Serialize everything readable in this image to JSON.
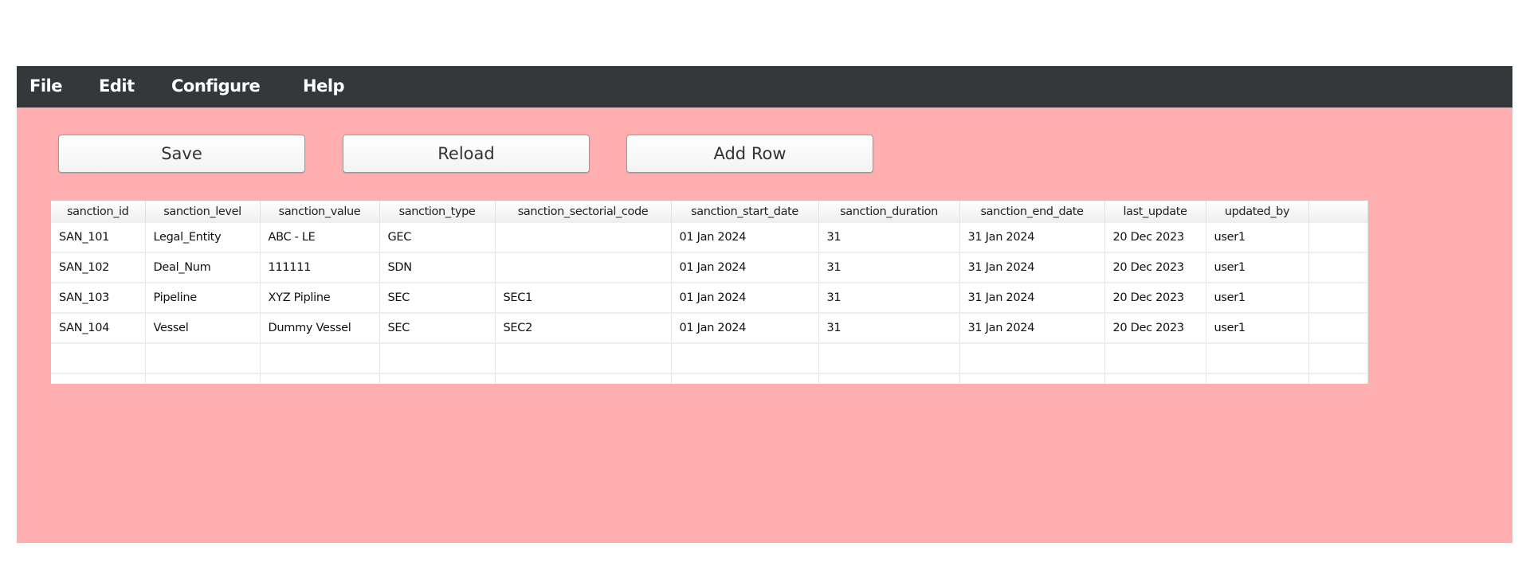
{
  "menu": [
    "File",
    "Edit",
    "Configure",
    "Help"
  ],
  "toolbar": {
    "save_label": "Save",
    "reload_label": "Reload",
    "add_row_label": "Add Row"
  },
  "colors": {
    "menubar": "#34383b",
    "background": "#ffafb0"
  },
  "table": {
    "columns": [
      "sanction_id",
      "sanction_level",
      "sanction_value",
      "sanction_type",
      "sanction_sectorial_code",
      "sanction_start_date",
      "sanction_duration",
      "sanction_end_date",
      "last_update",
      "updated_by"
    ],
    "rows": [
      [
        "SAN_101",
        "Legal_Entity",
        "ABC - LE",
        "GEC",
        "",
        "01 Jan 2024",
        "31",
        "31 Jan 2024",
        "20 Dec 2023",
        "user1"
      ],
      [
        "SAN_102",
        "Deal_Num",
        "111111",
        "SDN",
        "",
        "01 Jan 2024",
        "31",
        "31 Jan 2024",
        "20 Dec 2023",
        "user1"
      ],
      [
        "SAN_103",
        "Pipeline",
        "XYZ Pipline",
        "SEC",
        "SEC1",
        "01 Jan 2024",
        "31",
        "31 Jan 2024",
        "20 Dec 2023",
        "user1"
      ],
      [
        "SAN_104",
        "Vessel",
        "Dummy Vessel",
        "SEC",
        "SEC2",
        "01 Jan 2024",
        "31",
        "31 Jan 2024",
        "20 Dec 2023",
        "user1"
      ]
    ]
  }
}
